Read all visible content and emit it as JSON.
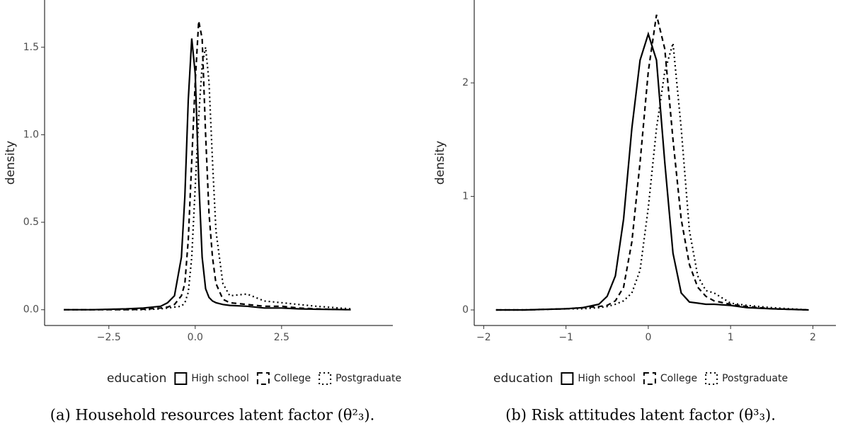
{
  "chart_data": [
    {
      "type": "line",
      "caption": "(a) Household resources latent factor (θ²₃).",
      "y_label": "density",
      "legend_title": "education",
      "x": [
        -3.8,
        -3,
        -2,
        -1.5,
        -1,
        -0.8,
        -0.6,
        -0.4,
        -0.3,
        -0.2,
        -0.1,
        0,
        0.1,
        0.2,
        0.3,
        0.4,
        0.5,
        0.6,
        0.8,
        1,
        1.5,
        2,
        2.5,
        3,
        3.5,
        4.5
      ],
      "series": [
        {
          "name": "High school",
          "color": "#000000",
          "dash": "solid",
          "values": [
            0,
            0,
            0.005,
            0.01,
            0.02,
            0.04,
            0.08,
            0.3,
            0.65,
            1.2,
            1.55,
            1.35,
            0.75,
            0.3,
            0.12,
            0.07,
            0.05,
            0.04,
            0.03,
            0.025,
            0.02,
            0.01,
            0.01,
            0.005,
            0.003,
            0
          ]
        },
        {
          "name": "College",
          "color": "#000000",
          "dash": "dashed",
          "values": [
            0,
            0,
            0,
            0.003,
            0.01,
            0.015,
            0.03,
            0.08,
            0.15,
            0.4,
            0.85,
            1.3,
            1.65,
            1.55,
            1.0,
            0.55,
            0.3,
            0.15,
            0.06,
            0.04,
            0.03,
            0.02,
            0.02,
            0.01,
            0.005,
            0
          ]
        },
        {
          "name": "Postgraduate",
          "color": "#000000",
          "dash": "dotted",
          "values": [
            0,
            0,
            0,
            0,
            0.005,
            0.01,
            0.015,
            0.02,
            0.04,
            0.1,
            0.3,
            0.7,
            1.1,
            1.4,
            1.5,
            1.3,
            0.85,
            0.45,
            0.15,
            0.08,
            0.09,
            0.05,
            0.04,
            0.03,
            0.02,
            0.005
          ]
        }
      ],
      "xlim": [
        -4.36,
        5.72
      ],
      "ylim": [
        -0.09,
        1.77
      ],
      "xticks": [
        {
          "value": -2.5,
          "label": "−2.5"
        },
        {
          "value": 0,
          "label": "0.0"
        },
        2.5
      ],
      "yticks": [
        {
          "value": 0,
          "label": "0.0"
        },
        0.5,
        {
          "value": 1,
          "label": "1.0"
        },
        1.5
      ]
    },
    {
      "type": "line",
      "caption": "(b) Risk attitudes latent factor (θ³₃).",
      "y_label": "density",
      "legend_title": "education",
      "x": [
        -1.85,
        -1.5,
        -1,
        -0.8,
        -0.6,
        -0.5,
        -0.4,
        -0.3,
        -0.2,
        -0.1,
        0,
        0.1,
        0.2,
        0.3,
        0.4,
        0.5,
        0.6,
        0.7,
        0.8,
        1,
        1.2,
        1.5,
        1.95
      ],
      "series": [
        {
          "name": "High school",
          "color": "#000000",
          "dash": "solid",
          "values": [
            0,
            0,
            0.01,
            0.02,
            0.05,
            0.12,
            0.3,
            0.8,
            1.6,
            2.2,
            2.43,
            2.2,
            1.3,
            0.5,
            0.15,
            0.07,
            0.06,
            0.05,
            0.05,
            0.04,
            0.02,
            0.01,
            0
          ]
        },
        {
          "name": "College",
          "color": "#000000",
          "dash": "dashed",
          "values": [
            0,
            0,
            0.01,
            0.02,
            0.03,
            0.04,
            0.08,
            0.2,
            0.6,
            1.3,
            2.1,
            2.6,
            2.3,
            1.5,
            0.8,
            0.4,
            0.2,
            0.12,
            0.08,
            0.05,
            0.03,
            0.01,
            0
          ]
        },
        {
          "name": "Postgraduate",
          "color": "#000000",
          "dash": "dotted",
          "values": [
            0,
            0,
            0.01,
            0.01,
            0.02,
            0.03,
            0.05,
            0.08,
            0.15,
            0.35,
            0.9,
            1.6,
            2.1,
            2.35,
            1.6,
            0.7,
            0.3,
            0.17,
            0.15,
            0.06,
            0.04,
            0.02,
            0
          ]
        }
      ],
      "xlim": [
        -2.115,
        2.28
      ],
      "ylim": [
        -0.137,
        2.73
      ],
      "xticks": [
        {
          "value": -2,
          "label": "−2"
        },
        {
          "value": -1,
          "label": "−1"
        },
        0,
        1,
        2
      ],
      "yticks": [
        0,
        1,
        2
      ]
    }
  ]
}
